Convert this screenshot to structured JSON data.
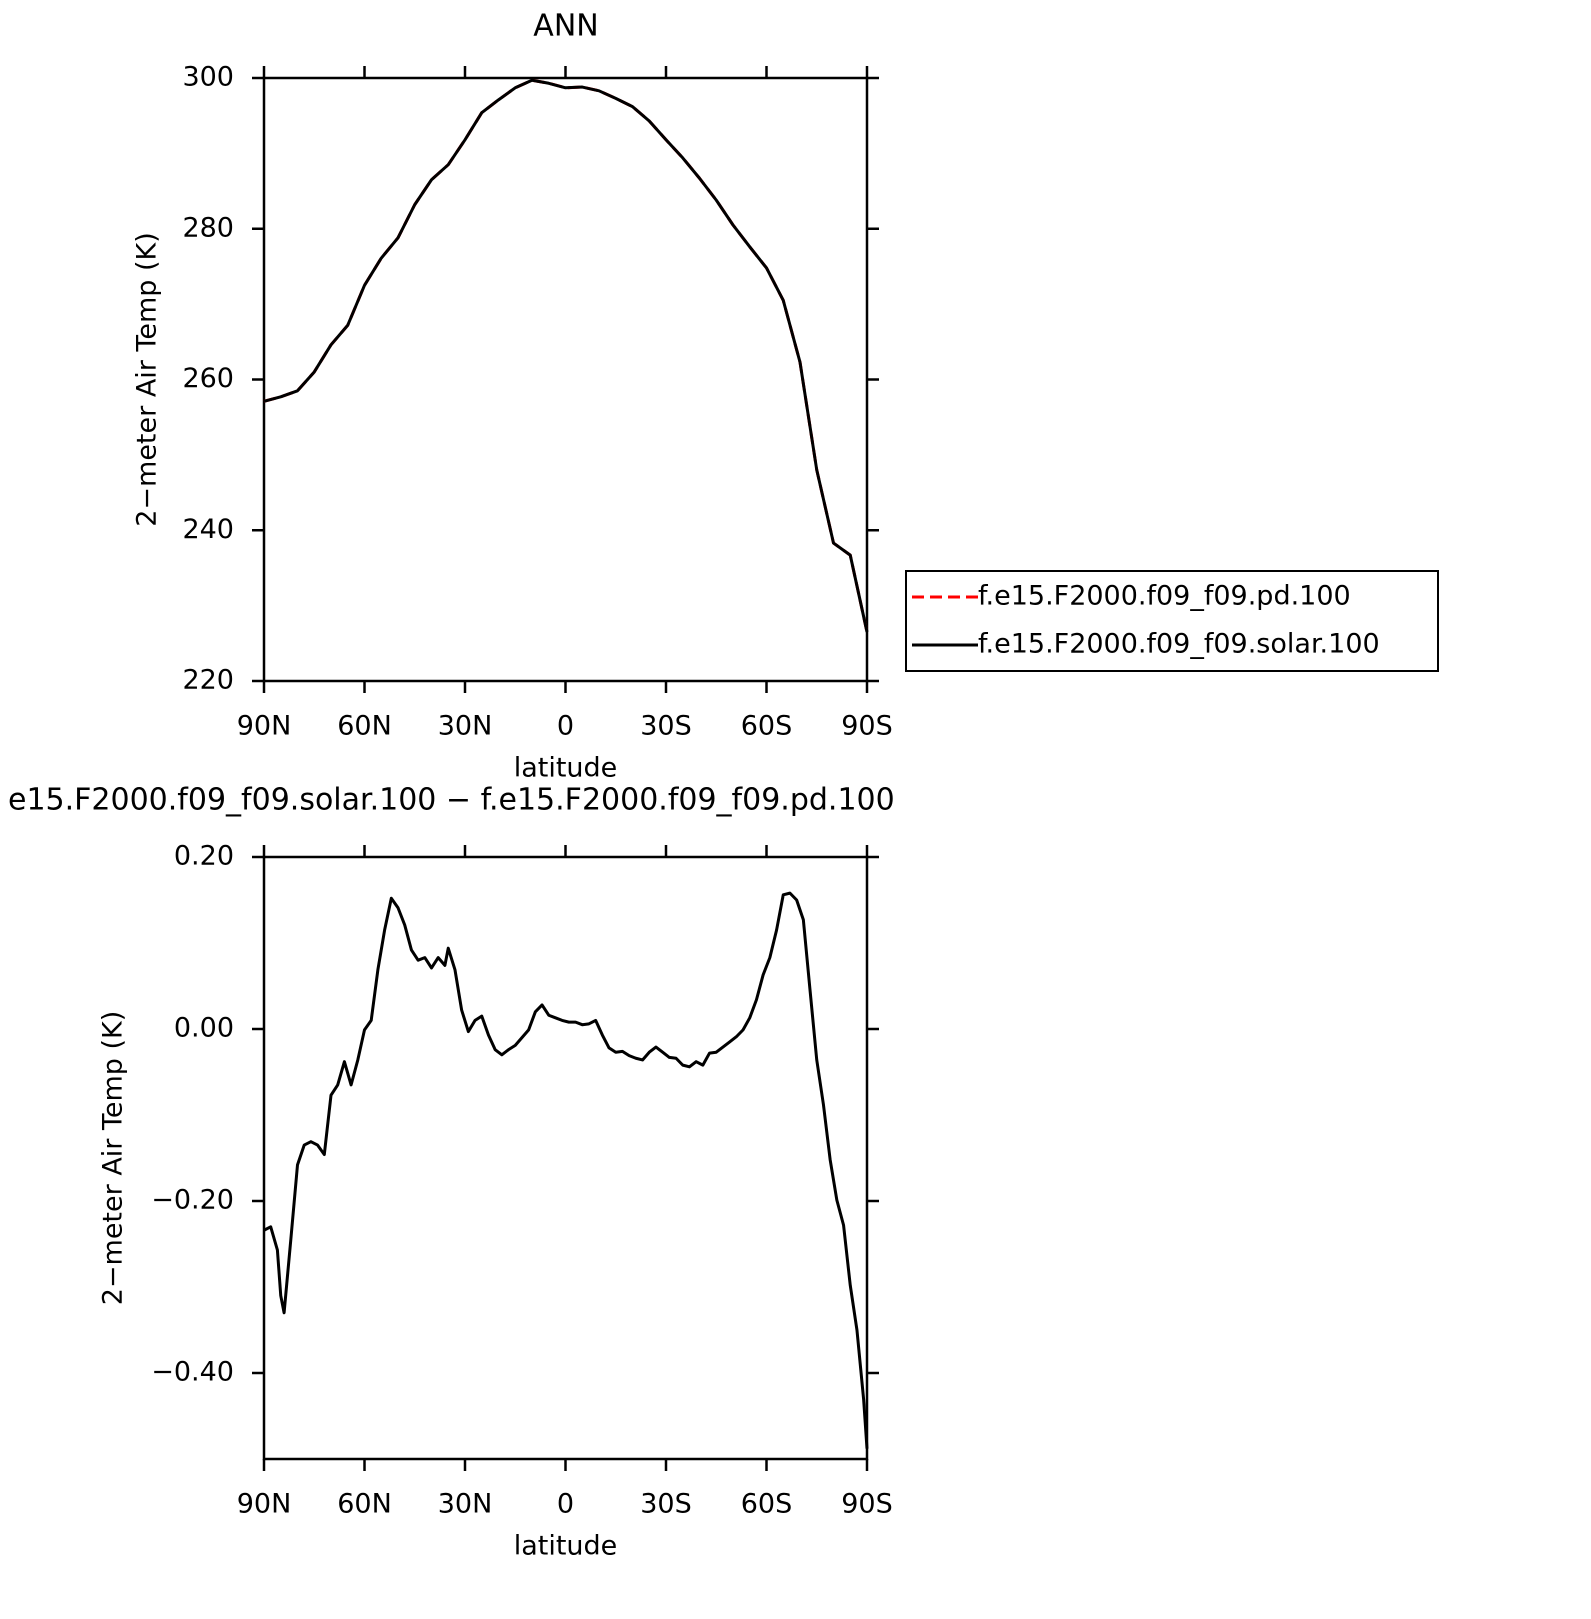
{
  "chart_data": [
    {
      "type": "line",
      "title": "ANN",
      "xlabel": "latitude",
      "ylabel": "2−meter Air Temp (K)",
      "x": [
        90,
        85,
        80,
        75,
        70,
        65,
        60,
        55,
        50,
        45,
        40,
        35,
        30,
        25,
        20,
        15,
        10,
        5,
        0,
        -5,
        -10,
        -15,
        -20,
        -25,
        -30,
        -35,
        -40,
        -45,
        -50,
        -55,
        -60,
        -65,
        -70,
        -75,
        -80,
        -85,
        -90
      ],
      "series": [
        {
          "name": "f.e15.F2000.f09_f09.pd.100",
          "color": "#ff0000",
          "line_style": "dashed",
          "values": [
            257.1,
            257.7,
            258.5,
            261,
            264.6,
            267.2,
            272.5,
            276.1,
            278.8,
            283.2,
            286.5,
            288.5,
            291.8,
            295.4,
            297.1,
            298.7,
            299.7,
            299.3,
            298.7,
            298.8,
            298.3,
            297.3,
            296.2,
            294.3,
            291.8,
            289.4,
            286.7,
            283.8,
            280.5,
            277.6,
            274.8,
            270.5,
            262.3,
            248,
            238.3,
            236.7,
            226.5
          ]
        },
        {
          "name": "f.e15.F2000.f09_f09.solar.100",
          "color": "#000000",
          "line_style": "solid",
          "values": [
            257.1,
            257.7,
            258.5,
            261,
            264.6,
            267.2,
            272.5,
            276.1,
            278.8,
            283.2,
            286.5,
            288.5,
            291.8,
            295.4,
            297.1,
            298.7,
            299.7,
            299.3,
            298.7,
            298.8,
            298.3,
            297.3,
            296.2,
            294.3,
            291.8,
            289.4,
            286.7,
            283.8,
            280.5,
            277.6,
            274.8,
            270.5,
            262.3,
            248,
            238.3,
            236.7,
            226.5
          ]
        }
      ],
      "xlim": [
        90,
        -90
      ],
      "xticks": [
        {
          "value": 90,
          "label": "90N"
        },
        {
          "value": 60,
          "label": "60N"
        },
        {
          "value": 30,
          "label": "30N"
        },
        0,
        {
          "value": -30,
          "label": "30S"
        },
        {
          "value": -60,
          "label": "60S"
        },
        {
          "value": -90,
          "label": "90S"
        }
      ],
      "ylim": [
        220,
        300
      ],
      "yticks": [
        220,
        240,
        260,
        280,
        300
      ],
      "legend": "right"
    },
    {
      "type": "line",
      "title": "e15.F2000.f09_f09.solar.100 − f.e15.F2000.f09_f09.pd.100",
      "xlabel": "latitude",
      "ylabel": "2−meter Air Temp (K)",
      "x": [
        90,
        88,
        86,
        85,
        84,
        82,
        80,
        78,
        76,
        74,
        72,
        70,
        68,
        66,
        64,
        62,
        60,
        58,
        56,
        54,
        52,
        50,
        48,
        46,
        44,
        42,
        40,
        38,
        36,
        35,
        33,
        31,
        29,
        27,
        25,
        23,
        21,
        19,
        17,
        15,
        13,
        11,
        9,
        7,
        5,
        3,
        1,
        -1,
        -3,
        -5,
        -7,
        -9,
        -11,
        -13,
        -15,
        -17,
        -19,
        -21,
        -23,
        -25,
        -27,
        -29,
        -31,
        -33,
        -35,
        -37,
        -39,
        -41,
        -43,
        -45,
        -47,
        -49,
        -51,
        -53,
        -55,
        -57,
        -59,
        -61,
        -63,
        -65,
        -67,
        -69,
        -71,
        -73,
        -75,
        -77,
        -79,
        -81,
        -83,
        -85,
        -87,
        -89,
        -90
      ],
      "series": [
        {
          "color": "#000000",
          "line_style": "solid",
          "values": [
            -0.234,
            -0.23,
            -0.257,
            -0.31,
            -0.33,
            -0.245,
            -0.158,
            -0.135,
            -0.131,
            -0.135,
            -0.146,
            -0.077,
            -0.065,
            -0.038,
            -0.065,
            -0.036,
            -0.001,
            0.01,
            0.069,
            0.115,
            0.152,
            0.141,
            0.121,
            0.092,
            0.08,
            0.083,
            0.071,
            0.083,
            0.074,
            0.094,
            0.069,
            0.022,
            -0.003,
            0.01,
            0.015,
            -0.007,
            -0.024,
            -0.03,
            -0.024,
            -0.019,
            -0.01,
            -0.001,
            0.02,
            0.028,
            0.016,
            0.013,
            0.01,
            0.008,
            0.008,
            0.005,
            0.006,
            0.01,
            -0.007,
            -0.022,
            -0.027,
            -0.026,
            -0.031,
            -0.034,
            -0.036,
            -0.027,
            -0.021,
            -0.027,
            -0.033,
            -0.034,
            -0.042,
            -0.044,
            -0.038,
            -0.042,
            -0.028,
            -0.027,
            -0.021,
            -0.015,
            -0.009,
            -0.001,
            0.013,
            0.034,
            0.063,
            0.083,
            0.115,
            0.156,
            0.158,
            0.15,
            0.127,
            0.045,
            -0.036,
            -0.088,
            -0.152,
            -0.199,
            -0.228,
            -0.298,
            -0.35,
            -0.431,
            -0.488
          ]
        }
      ],
      "xlim": [
        90,
        -90
      ],
      "xticks": [
        {
          "value": 90,
          "label": "90N"
        },
        {
          "value": 60,
          "label": "60N"
        },
        {
          "value": 30,
          "label": "30N"
        },
        0,
        {
          "value": -30,
          "label": "30S"
        },
        {
          "value": -60,
          "label": "60S"
        },
        {
          "value": -90,
          "label": "90S"
        }
      ],
      "ylim": [
        -0.5,
        0.2
      ],
      "yticks": [
        {
          "value": -0.4,
          "label": "−0.40"
        },
        {
          "value": -0.2,
          "label": "−0.20"
        },
        {
          "value": 0,
          "label": "0.00"
        },
        {
          "value": 0.2,
          "label": "0.20"
        }
      ]
    }
  ]
}
